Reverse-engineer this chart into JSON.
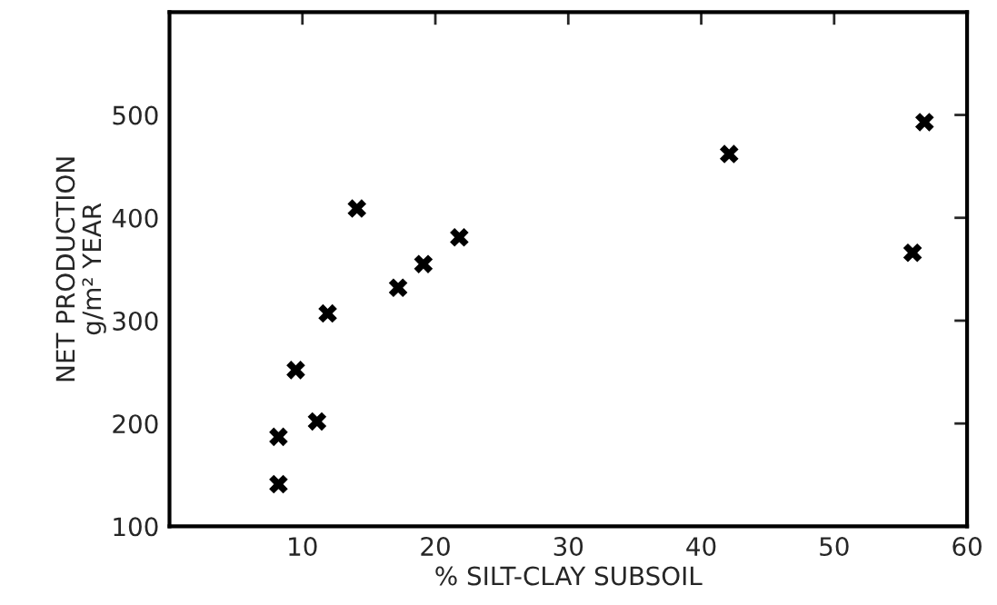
{
  "chart_data": {
    "type": "scatter",
    "xlabel": "% SILT-CLAY SUBSOIL",
    "ylabel": "NET PRODUCTION\ng/m² YEAR",
    "x": [
      8.2,
      8.2,
      9.5,
      11.1,
      11.9,
      14.1,
      17.2,
      19.1,
      21.8,
      42.1,
      56.8,
      55.9
    ],
    "series": [
      {
        "color": "#000000",
        "values": [
          141,
          187,
          252,
          202,
          307,
          409,
          332,
          355,
          381,
          462,
          493,
          366
        ]
      }
    ],
    "marker": "cross",
    "xlim": [
      0,
      60
    ],
    "xticks": [
      10,
      20,
      30,
      40,
      50,
      60
    ],
    "ylim": [
      100,
      600
    ],
    "yticks": [
      100,
      200,
      300,
      400,
      500
    ],
    "grid": false
  }
}
